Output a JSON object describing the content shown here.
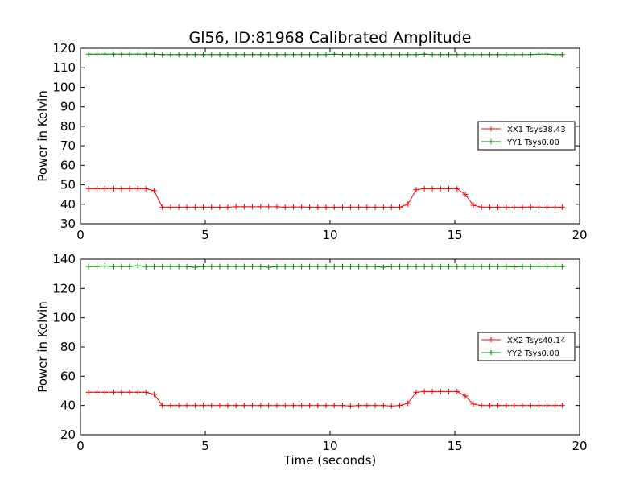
{
  "title": "Gl56, ID:81968 Calibrated Amplitude",
  "xlabel": "Time (seconds)",
  "colors": {
    "xx": "#ff0000",
    "yy": "#008000"
  },
  "chart_data": [
    {
      "type": "line",
      "ylabel": "Power in Kelvin",
      "xlim": [
        0,
        20
      ],
      "ylim": [
        30,
        120
      ],
      "xticks": [
        "0",
        "5",
        "10",
        "15",
        "20"
      ],
      "yticks": [
        "30",
        "40",
        "50",
        "60",
        "70",
        "80",
        "90",
        "100",
        "110",
        "120"
      ],
      "legend_position": "right",
      "x": [
        0.33,
        0.66,
        0.98,
        1.31,
        1.64,
        1.97,
        2.3,
        2.62,
        2.95,
        3.28,
        3.61,
        3.94,
        4.26,
        4.59,
        4.92,
        5.25,
        5.58,
        5.9,
        6.23,
        6.56,
        6.89,
        7.22,
        7.54,
        7.87,
        8.2,
        8.53,
        8.86,
        9.18,
        9.51,
        9.84,
        10.17,
        10.5,
        10.82,
        11.15,
        11.48,
        11.81,
        12.14,
        12.46,
        12.79,
        13.12,
        13.45,
        13.78,
        14.1,
        14.43,
        14.76,
        15.09,
        15.42,
        15.74,
        16.07,
        16.4,
        16.73,
        17.06,
        17.38,
        17.71,
        18.04,
        18.37,
        18.7,
        19.02,
        19.3
      ],
      "series": [
        {
          "name": "XX1 Tsys38.43",
          "values": [
            48,
            48,
            48,
            48,
            48,
            48,
            48,
            48,
            47,
            38.5,
            38.5,
            38.5,
            38.5,
            38.5,
            38.5,
            38.5,
            38.5,
            38.5,
            38.7,
            38.7,
            38.7,
            38.7,
            38.7,
            38.7,
            38.5,
            38.6,
            38.6,
            38.5,
            38.5,
            38.5,
            38.5,
            38.5,
            38.5,
            38.5,
            38.5,
            38.5,
            38.5,
            38.5,
            38.5,
            40,
            47.5,
            48,
            48,
            48,
            48,
            48,
            45,
            39.5,
            38.5,
            38.5,
            38.5,
            38.5,
            38.5,
            38.5,
            38.6,
            38.5,
            38.5,
            38.5,
            38.5
          ]
        },
        {
          "name": "YY1 Tsys0.00",
          "values": [
            117,
            117,
            117,
            117,
            117,
            117,
            117,
            117,
            117,
            116.8,
            116.8,
            116.8,
            116.8,
            116.8,
            116.8,
            116.8,
            116.8,
            116.8,
            116.8,
            116.8,
            116.8,
            116.8,
            116.8,
            116.8,
            116.8,
            116.8,
            116.8,
            116.8,
            116.8,
            116.8,
            117,
            116.8,
            116.8,
            116.8,
            116.8,
            116.8,
            116.8,
            116.8,
            116.8,
            116.8,
            116.8,
            117,
            116.8,
            116.8,
            116.8,
            116.8,
            116.8,
            116.8,
            116.8,
            116.8,
            116.8,
            116.8,
            116.8,
            116.8,
            116.8,
            117,
            117,
            116.8,
            116.8
          ]
        }
      ]
    },
    {
      "type": "line",
      "ylabel": "Power in Kelvin",
      "xlim": [
        0,
        20
      ],
      "ylim": [
        20,
        140
      ],
      "xticks": [
        "0",
        "5",
        "10",
        "15",
        "20"
      ],
      "yticks": [
        "20",
        "40",
        "60",
        "80",
        "100",
        "120",
        "140"
      ],
      "legend_position": "right",
      "x": [
        0.33,
        0.66,
        0.98,
        1.31,
        1.64,
        1.97,
        2.3,
        2.62,
        2.95,
        3.28,
        3.61,
        3.94,
        4.26,
        4.59,
        4.92,
        5.25,
        5.58,
        5.9,
        6.23,
        6.56,
        6.89,
        7.22,
        7.54,
        7.87,
        8.2,
        8.53,
        8.86,
        9.18,
        9.51,
        9.84,
        10.17,
        10.5,
        10.82,
        11.15,
        11.48,
        11.81,
        12.14,
        12.46,
        12.79,
        13.12,
        13.45,
        13.78,
        14.1,
        14.43,
        14.76,
        15.09,
        15.42,
        15.74,
        16.07,
        16.4,
        16.73,
        17.06,
        17.38,
        17.71,
        18.04,
        18.37,
        18.7,
        19.02,
        19.3
      ],
      "series": [
        {
          "name": "XX2 Tsys40.14",
          "values": [
            49,
            49,
            49,
            49,
            49,
            49,
            49,
            49,
            47.5,
            40,
            40,
            40,
            40,
            40,
            40,
            40,
            40,
            40,
            40,
            40,
            40,
            40,
            40,
            40,
            40,
            40,
            40,
            40,
            40,
            40,
            40,
            40,
            39.7,
            40,
            40,
            40,
            40,
            39.7,
            40,
            41.5,
            49,
            49.5,
            49.5,
            49.5,
            49.5,
            49.5,
            46.5,
            41,
            40,
            40,
            40,
            40,
            40,
            40,
            40,
            40,
            40,
            40,
            40
          ]
        },
        {
          "name": "YY2 Tsys0.00",
          "values": [
            135,
            135,
            135.3,
            135,
            135,
            135,
            135.5,
            135,
            135,
            135,
            135,
            135,
            135,
            134.5,
            135,
            135,
            135,
            135,
            135,
            135,
            135,
            135,
            134.5,
            135,
            135,
            135,
            135,
            135,
            135,
            135,
            135,
            135,
            135,
            135,
            135,
            135,
            134.5,
            135,
            135,
            135,
            135,
            135,
            135,
            135,
            135,
            135,
            135,
            135,
            135,
            135,
            135,
            135,
            134.7,
            135,
            135,
            135,
            135,
            135,
            135
          ]
        }
      ]
    }
  ]
}
